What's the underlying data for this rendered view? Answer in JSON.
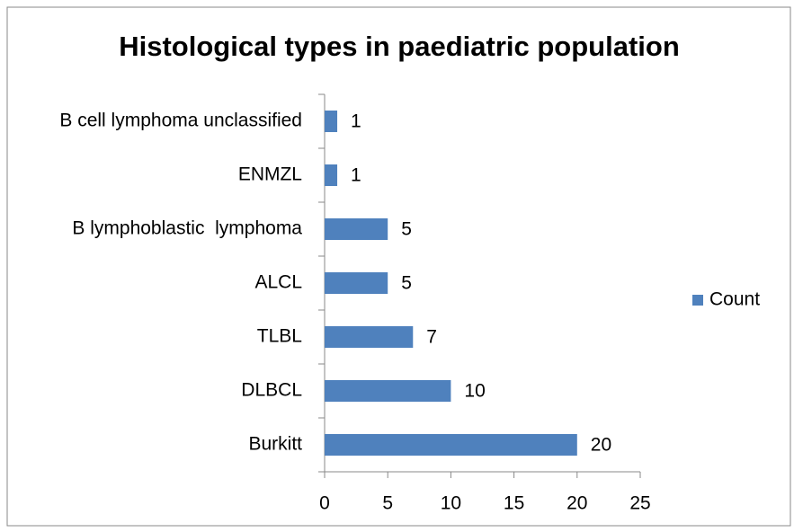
{
  "chart_data": {
    "type": "bar",
    "orientation": "horizontal",
    "title": "Histological types in paediatric population",
    "categories": [
      "Burkitt",
      "DLBCL",
      "TLBL",
      "ALCL",
      "B lymphoblastic  lymphoma",
      "ENMZL",
      "B cell lymphoma unclassified"
    ],
    "series": [
      {
        "name": "Count",
        "color": "#4f81bd",
        "values": [
          20,
          10,
          7,
          5,
          5,
          1,
          1
        ]
      }
    ],
    "xlim": [
      0,
      25
    ],
    "xticks": [
      0,
      5,
      10,
      15,
      20,
      25
    ],
    "grid": false,
    "legend": "right"
  }
}
